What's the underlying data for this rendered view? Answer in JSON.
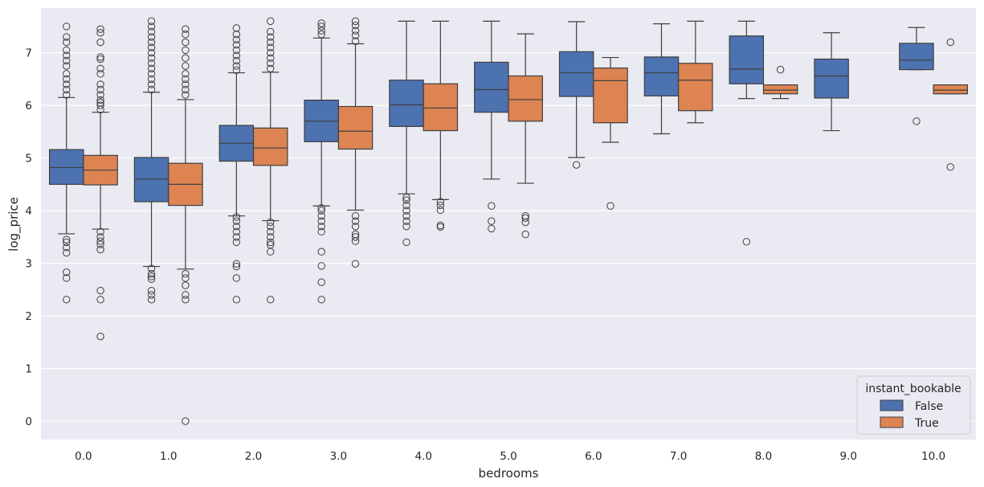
{
  "chart_data": {
    "type": "boxplot",
    "title": "",
    "xlabel": "bedrooms",
    "ylabel": "log_price",
    "ylim": [
      -0.35,
      7.85
    ],
    "yticks": [
      0,
      1,
      2,
      3,
      4,
      5,
      6,
      7
    ],
    "categories": [
      "0.0",
      "1.0",
      "2.0",
      "3.0",
      "4.0",
      "5.0",
      "6.0",
      "7.0",
      "8.0",
      "9.0",
      "10.0"
    ],
    "grid": true,
    "legend": {
      "title": "instant_bookable",
      "position": "bottom-right"
    },
    "series": [
      {
        "name": "False",
        "color": "#4C72B0",
        "boxes": [
          {
            "category": "0.0",
            "q1": 4.5,
            "median": 4.82,
            "q3": 5.16,
            "whislo": 3.56,
            "whishi": 6.15,
            "fliers": [
              7.5,
              7.3,
              7.2,
              7.05,
              6.95,
              6.85,
              6.75,
              6.6,
              6.5,
              6.4,
              6.3,
              6.2,
              3.45,
              3.4,
              3.3,
              3.2,
              2.83,
              2.72,
              2.31
            ]
          },
          {
            "category": "1.0",
            "q1": 4.17,
            "median": 4.6,
            "q3": 5.01,
            "whislo": 2.94,
            "whishi": 6.25,
            "fliers": [
              7.6,
              7.5,
              7.4,
              7.3,
              7.2,
              7.1,
              7.0,
              6.9,
              6.8,
              6.7,
              6.6,
              6.5,
              6.4,
              6.3,
              2.9,
              2.8,
              2.75,
              2.7,
              2.48,
              2.4,
              2.31
            ]
          },
          {
            "category": "2.0",
            "q1": 4.94,
            "median": 5.28,
            "q3": 5.62,
            "whislo": 3.9,
            "whishi": 6.62,
            "fliers": [
              7.47,
              7.35,
              7.25,
              7.15,
              7.05,
              6.95,
              6.85,
              6.75,
              6.67,
              3.88,
              3.8,
              3.7,
              3.6,
              3.5,
              3.4,
              2.99,
              2.94,
              2.72,
              2.31
            ]
          },
          {
            "category": "3.0",
            "q1": 5.31,
            "median": 5.7,
            "q3": 6.1,
            "whislo": 4.09,
            "whishi": 7.28,
            "fliers": [
              7.56,
              7.5,
              7.42,
              7.35,
              4.05,
              4.0,
              3.9,
              3.8,
              3.7,
              3.6,
              3.22,
              2.95,
              2.64,
              2.31
            ]
          },
          {
            "category": "4.0",
            "q1": 5.6,
            "median": 6.01,
            "q3": 6.48,
            "whislo": 4.32,
            "whishi": 7.6,
            "fliers": [
              4.25,
              4.2,
              4.1,
              4.0,
              3.9,
              3.8,
              3.7,
              3.4
            ]
          },
          {
            "category": "5.0",
            "q1": 5.87,
            "median": 6.3,
            "q3": 6.82,
            "whislo": 4.6,
            "whishi": 7.6,
            "fliers": [
              4.09,
              3.8,
              3.66
            ]
          },
          {
            "category": "6.0",
            "q1": 6.17,
            "median": 6.62,
            "q3": 7.02,
            "whislo": 5.01,
            "whishi": 7.59,
            "fliers": [
              4.87
            ]
          },
          {
            "category": "7.0",
            "q1": 6.18,
            "median": 6.62,
            "q3": 6.92,
            "whislo": 5.46,
            "whishi": 7.55,
            "fliers": []
          },
          {
            "category": "8.0",
            "q1": 6.41,
            "median": 6.69,
            "q3": 7.32,
            "whislo": 6.13,
            "whishi": 7.6,
            "fliers": [
              3.41
            ]
          },
          {
            "category": "9.0",
            "q1": 6.14,
            "median": 6.56,
            "q3": 6.88,
            "whislo": 5.52,
            "whishi": 7.38,
            "fliers": []
          },
          {
            "category": "10.0",
            "q1": 6.68,
            "median": 6.86,
            "q3": 7.18,
            "whislo": 6.68,
            "whishi": 7.48,
            "fliers": [
              5.7
            ]
          }
        ]
      },
      {
        "name": "True",
        "color": "#DD8452",
        "boxes": [
          {
            "category": "0.0",
            "q1": 4.49,
            "median": 4.77,
            "q3": 5.05,
            "whislo": 3.65,
            "whishi": 5.87,
            "fliers": [
              7.45,
              7.38,
              7.2,
              6.92,
              6.88,
              6.7,
              6.6,
              6.4,
              6.3,
              6.2,
              6.1,
              6.05,
              6.0,
              5.92,
              3.6,
              3.5,
              3.42,
              3.36,
              3.26,
              2.48,
              2.31,
              1.61
            ]
          },
          {
            "category": "1.0",
            "q1": 4.1,
            "median": 4.5,
            "q3": 4.9,
            "whislo": 2.89,
            "whishi": 6.11,
            "fliers": [
              7.45,
              7.35,
              7.2,
              7.05,
              6.9,
              6.75,
              6.6,
              6.5,
              6.4,
              6.3,
              6.2,
              2.8,
              2.72,
              2.58,
              2.4,
              2.31,
              0.0
            ]
          },
          {
            "category": "2.0",
            "q1": 4.86,
            "median": 5.19,
            "q3": 5.57,
            "whislo": 3.81,
            "whishi": 6.63,
            "fliers": [
              7.6,
              7.4,
              7.3,
              7.2,
              7.1,
              7.0,
              6.9,
              6.8,
              6.7,
              3.78,
              3.7,
              3.6,
              3.5,
              3.4,
              3.35,
              3.22,
              2.31
            ]
          },
          {
            "category": "3.0",
            "q1": 5.17,
            "median": 5.51,
            "q3": 5.98,
            "whislo": 4.01,
            "whishi": 7.17,
            "fliers": [
              7.6,
              7.52,
              7.42,
              7.33,
              7.22,
              3.9,
              3.8,
              3.7,
              3.55,
              3.5,
              3.42,
              2.99
            ]
          },
          {
            "category": "4.0",
            "q1": 5.52,
            "median": 5.95,
            "q3": 6.41,
            "whislo": 4.21,
            "whishi": 7.6,
            "fliers": [
              4.17,
              4.1,
              4.01,
              3.72,
              3.69
            ]
          },
          {
            "category": "5.0",
            "q1": 5.7,
            "median": 6.11,
            "q3": 6.56,
            "whislo": 4.52,
            "whishi": 7.36,
            "fliers": [
              3.9,
              3.86,
              3.78,
              3.55
            ]
          },
          {
            "category": "6.0",
            "q1": 5.67,
            "median": 6.47,
            "q3": 6.71,
            "whislo": 5.3,
            "whishi": 6.91,
            "fliers": [
              4.09
            ]
          },
          {
            "category": "7.0",
            "q1": 5.9,
            "median": 6.48,
            "q3": 6.8,
            "whislo": 5.67,
            "whishi": 7.6,
            "fliers": []
          },
          {
            "category": "8.0",
            "q1": 6.22,
            "median": 6.29,
            "q3": 6.39,
            "whislo": 6.13,
            "whishi": 6.39,
            "fliers": [
              6.68
            ]
          },
          {
            "category": "10.0",
            "q1": 6.22,
            "median": 6.29,
            "q3": 6.39,
            "whislo": 6.22,
            "whishi": 6.39,
            "fliers": [
              7.2,
              4.83
            ]
          }
        ]
      }
    ]
  }
}
